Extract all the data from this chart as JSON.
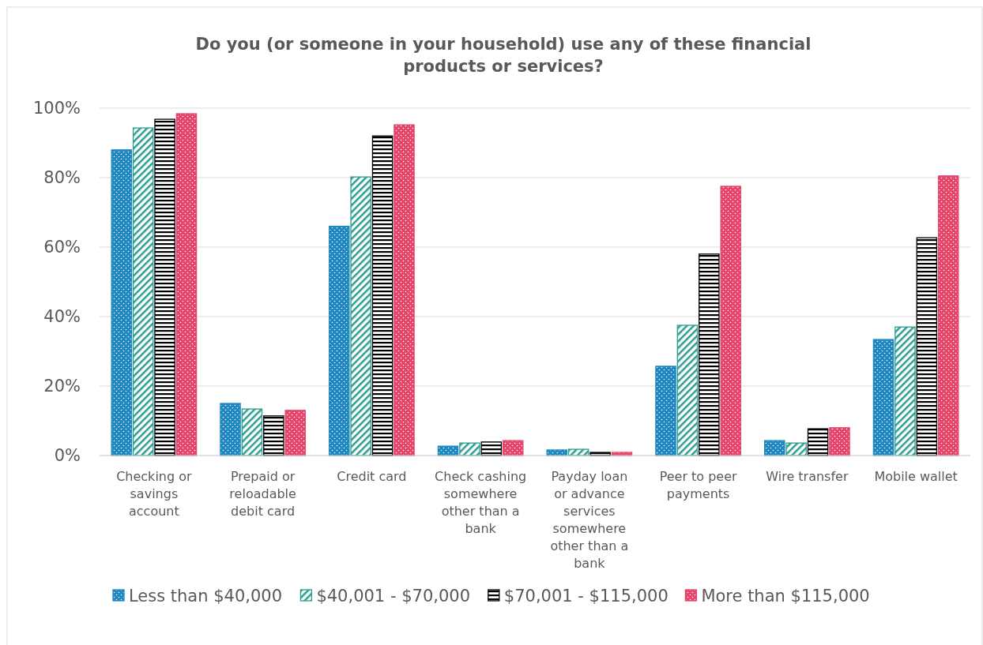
{
  "chart_data": {
    "type": "bar",
    "title": "Do you (or someone in your household) use any of these financial products or services?",
    "categories": [
      "Checking or savings account",
      "Prepaid or reloadable debit card",
      "Credit card",
      "Check cashing somewhere other than a bank",
      "Payday loan or advance services somewhere other than a bank",
      "Peer to peer payments",
      "Wire transfer",
      "Mobile wallet"
    ],
    "series": [
      {
        "name": "Less than $40,000",
        "color": "#1f87c0",
        "values": [
          88,
          15,
          66,
          2.7,
          1.6,
          25.7,
          4.3,
          33.4
        ]
      },
      {
        "name": "$40,001 - $70,000",
        "color": "#2a9d8f",
        "values": [
          94.3,
          13.4,
          80.2,
          3.6,
          1.8,
          37.5,
          3.6,
          37
        ]
      },
      {
        "name": "$70,001 - $115,000",
        "color": "#000000",
        "values": [
          96.8,
          11.4,
          92,
          3.9,
          0.9,
          58,
          7.7,
          62.7
        ]
      },
      {
        "name": "More than $115,000",
        "color": "#e5456b",
        "values": [
          98.4,
          13,
          95.2,
          4.3,
          0.9,
          77.5,
          8,
          80.5
        ]
      }
    ],
    "ylim": [
      0,
      100
    ],
    "yticks": [
      {
        "value": 0,
        "label": "0%"
      },
      {
        "value": 20,
        "label": "20%"
      },
      {
        "value": 40,
        "label": "40%"
      },
      {
        "value": 60,
        "label": "60%"
      },
      {
        "value": 80,
        "label": "80%"
      },
      {
        "value": 100,
        "label": "100%"
      }
    ],
    "grid": "y",
    "legend": "bottom"
  }
}
